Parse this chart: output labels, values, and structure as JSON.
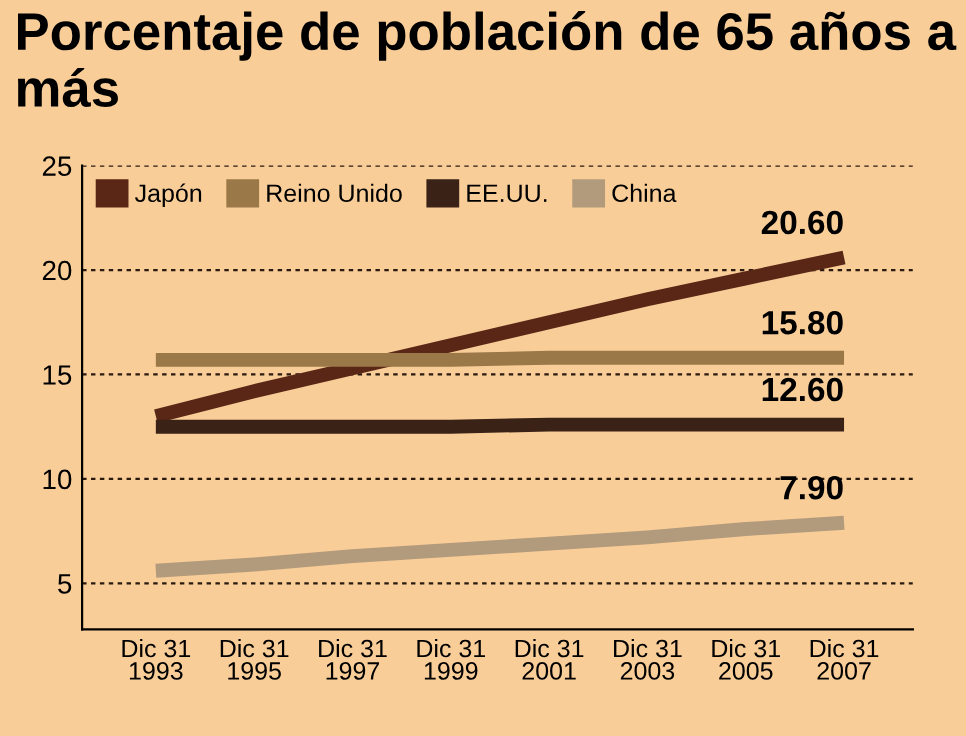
{
  "chart_data": {
    "type": "line",
    "title": "Porcentaje de población de 65 años a más",
    "categories": [
      "Dic 31\n1993",
      "Dic 31\n1995",
      "Dic 31\n1997",
      "Dic 31\n1999",
      "Dic 31\n2001",
      "Dic 31\n2003",
      "Dic 31\n2005",
      "Dic 31\n2007"
    ],
    "ylim": [
      2.8,
      25
    ],
    "yticks": [
      5,
      10,
      15,
      20,
      25
    ],
    "grid": "y",
    "legend": "top left",
    "marker": "none",
    "line_style": "solid",
    "series": [
      {
        "name": "Japón",
        "color": "#5a2616",
        "values": [
          13.0,
          14.2,
          15.3,
          16.4,
          17.5,
          18.6,
          19.6,
          20.6
        ],
        "value_labels": [
          null,
          null,
          null,
          null,
          null,
          null,
          null,
          "20.60"
        ]
      },
      {
        "name": "Reino Unido",
        "color": "#9a7848",
        "values": [
          15.7,
          15.7,
          15.7,
          15.7,
          15.8,
          15.8,
          15.8,
          15.8
        ],
        "value_labels": [
          null,
          null,
          null,
          null,
          null,
          null,
          null,
          "15.80"
        ]
      },
      {
        "name": "EE.UU.",
        "color": "#3a2216",
        "values": [
          12.5,
          12.5,
          12.5,
          12.5,
          12.6,
          12.6,
          12.6,
          12.6
        ],
        "value_labels": [
          null,
          null,
          null,
          null,
          null,
          null,
          null,
          "12.60"
        ]
      },
      {
        "name": "China",
        "color": "#b29a7c",
        "values": [
          5.6,
          5.9,
          6.3,
          6.6,
          6.9,
          7.2,
          7.6,
          7.9
        ],
        "value_labels": [
          null,
          null,
          null,
          null,
          null,
          null,
          null,
          "7.90"
        ]
      }
    ]
  }
}
